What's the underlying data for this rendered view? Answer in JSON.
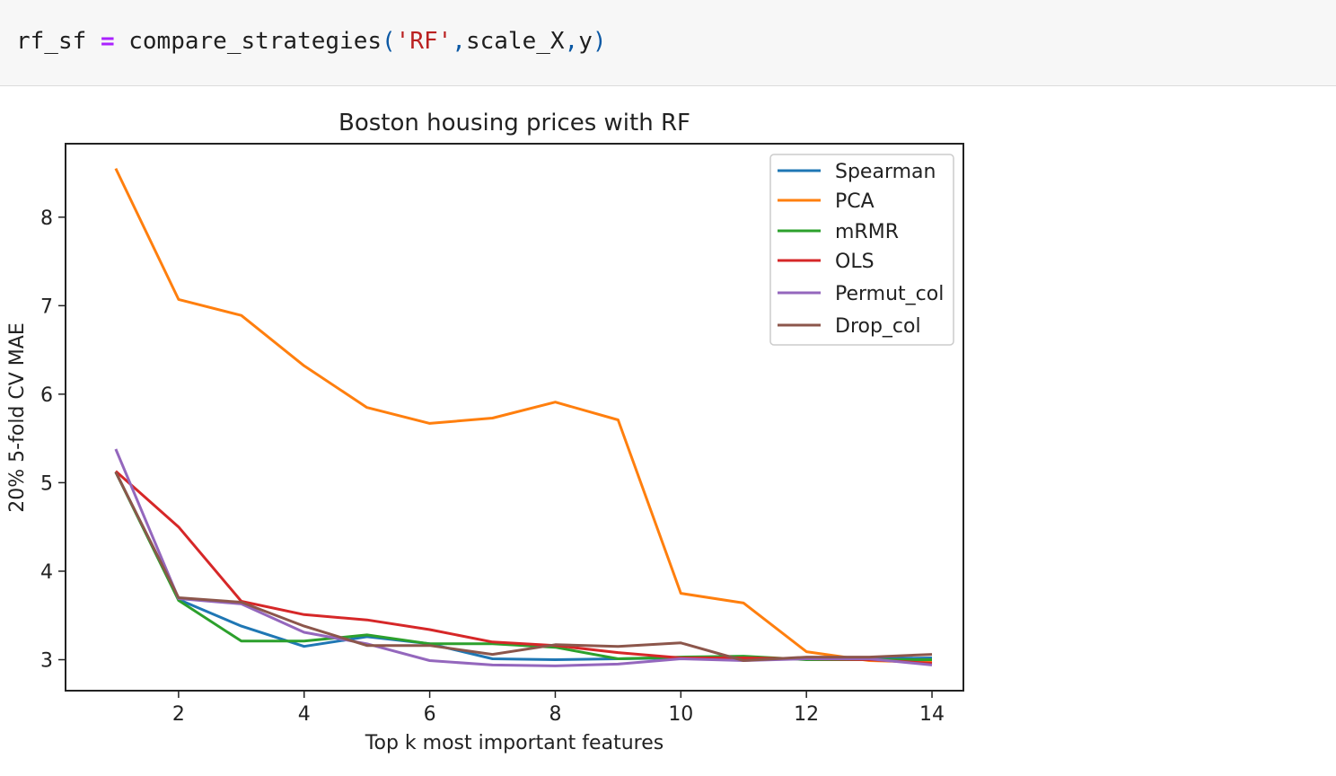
{
  "code": {
    "var": "rf_sf",
    "op": "=",
    "func": "compare_strategies",
    "paren_open": "(",
    "arg_str": "'RF'",
    "comma1": ",",
    "arg2": "scale_X",
    "comma2": ",",
    "arg3": "y",
    "paren_close": ")"
  },
  "chart_data": {
    "type": "line",
    "title": "Boston housing prices with RF",
    "xlabel": "Top k most important features",
    "ylabel": "20% 5-fold CV MAE",
    "xlim": [
      0.2,
      14.5
    ],
    "ylim": [
      2.65,
      8.83
    ],
    "xticks": [
      2,
      4,
      6,
      8,
      10,
      12,
      14
    ],
    "yticks": [
      3,
      4,
      5,
      6,
      7,
      8
    ],
    "legend_position": "top-right",
    "grid": false,
    "x": [
      1,
      2,
      3,
      4,
      5,
      6,
      7,
      8,
      9,
      10,
      11,
      12,
      13,
      14
    ],
    "series": [
      {
        "name": "Spearman",
        "color": "#1f77b4",
        "values": [
          5.12,
          3.68,
          3.38,
          3.15,
          3.26,
          3.18,
          3.01,
          3.0,
          3.01,
          3.02,
          3.02,
          3.01,
          3.01,
          3.02
        ]
      },
      {
        "name": "PCA",
        "color": "#ff7f0e",
        "values": [
          8.55,
          7.07,
          6.89,
          6.32,
          5.85,
          5.67,
          5.73,
          5.91,
          5.71,
          3.75,
          3.64,
          3.09,
          2.99,
          2.97
        ]
      },
      {
        "name": "mRMR",
        "color": "#2ca02c",
        "values": [
          5.12,
          3.67,
          3.21,
          3.21,
          3.28,
          3.18,
          3.18,
          3.14,
          3.01,
          3.03,
          3.04,
          3.0,
          3.0,
          3.0
        ]
      },
      {
        "name": "OLS",
        "color": "#d62728",
        "values": [
          5.13,
          4.5,
          3.66,
          3.51,
          3.45,
          3.34,
          3.2,
          3.16,
          3.08,
          3.02,
          3.02,
          3.01,
          3.0,
          2.96
        ]
      },
      {
        "name": "Permut_col",
        "color": "#9467bd",
        "values": [
          5.38,
          3.69,
          3.63,
          3.31,
          3.18,
          2.99,
          2.94,
          2.93,
          2.95,
          3.01,
          2.99,
          3.01,
          3.01,
          2.94
        ]
      },
      {
        "name": "Drop_col",
        "color": "#8c564b",
        "values": [
          5.12,
          3.7,
          3.65,
          3.38,
          3.16,
          3.16,
          3.06,
          3.17,
          3.15,
          3.19,
          2.99,
          3.03,
          3.03,
          3.06
        ]
      }
    ]
  }
}
